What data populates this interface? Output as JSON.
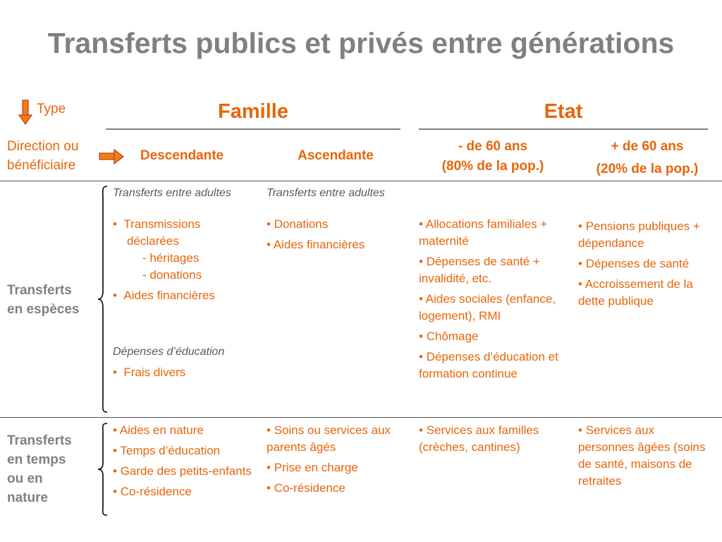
{
  "title": "Transferts publics et privés entre générations",
  "header": {
    "type_label": "Type",
    "direction_label_lines": [
      "Direction ou",
      "bénéficiaire"
    ],
    "famille": "Famille",
    "etat": "Etat",
    "columns": [
      {
        "lines": [
          "Descendante"
        ]
      },
      {
        "lines": [
          "Ascendante"
        ]
      },
      {
        "lines": [
          "- de 60 ans",
          "(80% de la pop.)"
        ]
      },
      {
        "lines": [
          "+ de 60 ans",
          "(20% de la pop.)"
        ]
      }
    ]
  },
  "rows": {
    "especes": {
      "label_lines": [
        "Transferts",
        "en espèces"
      ],
      "descendante": {
        "subheading1": "Transferts entre adultes",
        "item1_lines": [
          "Transmissions",
          "déclarées"
        ],
        "sub_items": [
          "- héritages",
          "- donations"
        ],
        "item2": "Aides financières",
        "subheading2": "Dépenses d’éducation",
        "item3": "Frais divers"
      },
      "ascendante": {
        "subheading": "Transferts entre adultes",
        "items": [
          "Donations",
          "Aides financières"
        ]
      },
      "moins60": {
        "items": [
          "Allocations familiales + maternité",
          "Dépenses de santé + invalidité, etc.",
          "Aides sociales (enfance, logement), RMI",
          "Chômage",
          "Dépenses d’éducation et formation continue"
        ]
      },
      "plus60": {
        "items": [
          "Pensions publiques + dépendance",
          "Dépenses de santé",
          "Accroissement de la dette publique"
        ]
      }
    },
    "nature": {
      "label_lines": [
        "Transferts",
        "en temps",
        "ou en",
        "nature"
      ],
      "descendante": {
        "items": [
          "Aides en nature",
          "Temps d’éducation",
          "Garde des petits-enfants",
          "Co-résidence"
        ]
      },
      "ascendante": {
        "items": [
          "Soins ou services aux parents âgés",
          "Prise en charge",
          "Co-résidence"
        ]
      },
      "moins60": {
        "items": [
          "Services aux familles (crèches, cantines)"
        ]
      },
      "plus60": {
        "items": [
          "Services aux personnes âgées (soins de santé, maisons de retraites"
        ]
      }
    }
  },
  "colors": {
    "accent": "#e8650a",
    "gray_title": "#808080",
    "italic_gray": "#595959"
  },
  "icons": [
    "down-arrow-icon",
    "right-arrow-icon",
    "left-brace-icon"
  ]
}
